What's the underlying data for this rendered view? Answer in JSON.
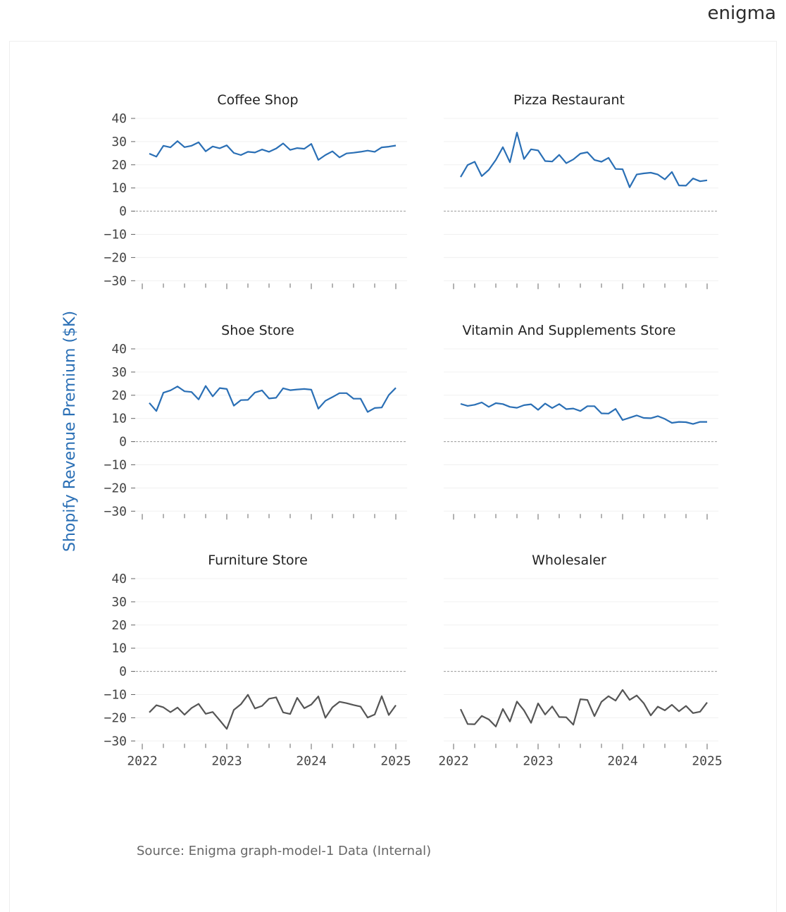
{
  "brand": {
    "logo_text": "enigma"
  },
  "source": "Source: Enigma graph-model-1 Data (Internal)",
  "chart_data": {
    "type": "line",
    "ylabel": "Shopify Revenue Premium ($K)",
    "ylim": [
      -30,
      40
    ],
    "yticks": [
      40,
      30,
      20,
      10,
      0,
      -10,
      -20,
      -30
    ],
    "ytick_labels": [
      "40",
      "30",
      "20",
      "10",
      "0",
      "−10",
      "−20",
      "−30"
    ],
    "xlim": [
      "2022-01",
      "2025-02"
    ],
    "xticks": [
      "2022",
      "2023",
      "2024",
      "2025"
    ],
    "zero_line": "dashed",
    "grid": "horizontal",
    "colors": {
      "positive": "#2a6fb5",
      "negative": "#555555"
    },
    "x": [
      "2022-02",
      "2022-03",
      "2022-04",
      "2022-05",
      "2022-06",
      "2022-07",
      "2022-08",
      "2022-09",
      "2022-10",
      "2022-11",
      "2022-12",
      "2023-01",
      "2023-02",
      "2023-03",
      "2023-04",
      "2023-05",
      "2023-06",
      "2023-07",
      "2023-08",
      "2023-09",
      "2023-10",
      "2023-11",
      "2023-12",
      "2024-01",
      "2024-02",
      "2024-03",
      "2024-04",
      "2024-05",
      "2024-06",
      "2024-07",
      "2024-08",
      "2024-09",
      "2024-10",
      "2024-11",
      "2024-12",
      "2025-01"
    ],
    "panels": [
      {
        "title": "Coffee Shop",
        "color": "#2a6fb5",
        "values": [
          24.8,
          23.5,
          28.2,
          27.5,
          30.2,
          27.6,
          28.2,
          29.7,
          25.8,
          27.9,
          27.1,
          28.4,
          25.1,
          24.2,
          25.6,
          25.3,
          26.6,
          25.6,
          27.0,
          29.2,
          26.4,
          27.2,
          26.9,
          29.0,
          22.1,
          24.2,
          25.8,
          23.2,
          24.9,
          25.2,
          25.6,
          26.1,
          25.6,
          27.5,
          27.8,
          28.3
        ]
      },
      {
        "title": "Pizza Restaurant",
        "color": "#2a6fb5",
        "values": [
          14.7,
          19.9,
          21.3,
          15.1,
          17.8,
          22.1,
          27.6,
          21.1,
          33.9,
          22.5,
          26.7,
          26.2,
          21.6,
          21.4,
          24.3,
          20.7,
          22.3,
          24.8,
          25.4,
          22.1,
          21.3,
          23.0,
          18.2,
          18.1,
          10.3,
          15.8,
          16.3,
          16.6,
          15.8,
          13.7,
          16.9,
          11.1,
          11.0,
          14.1,
          12.9,
          13.3
        ]
      },
      {
        "title": "Shoe Store",
        "color": "#2a6fb5",
        "values": [
          16.7,
          13.2,
          21.1,
          22.1,
          23.8,
          21.7,
          21.4,
          18.2,
          24.0,
          19.5,
          23.1,
          22.7,
          15.5,
          17.9,
          18.0,
          21.2,
          22.1,
          18.6,
          18.9,
          23.0,
          22.2,
          22.5,
          22.7,
          22.4,
          14.2,
          17.6,
          19.2,
          20.9,
          20.9,
          18.5,
          18.5,
          12.8,
          14.5,
          14.7,
          20.1,
          23.2
        ]
      },
      {
        "title": "Vitamin And Supplements Store",
        "color": "#2a6fb5",
        "values": [
          16.3,
          15.4,
          15.9,
          16.9,
          15.0,
          16.6,
          16.2,
          15.0,
          14.6,
          15.7,
          16.1,
          13.7,
          16.4,
          14.5,
          16.2,
          14.0,
          14.3,
          13.2,
          15.3,
          15.3,
          12.2,
          12.1,
          14.1,
          9.3,
          10.3,
          11.3,
          10.2,
          10.1,
          11.0,
          9.8,
          8.1,
          8.5,
          8.4,
          7.6,
          8.5,
          8.5
        ]
      },
      {
        "title": "Furniture Store",
        "color": "#555555",
        "values": [
          -17.7,
          -14.6,
          -15.5,
          -17.6,
          -15.6,
          -18.7,
          -15.8,
          -14.0,
          -18.3,
          -17.5,
          -21.1,
          -24.8,
          -16.6,
          -14.2,
          -10.1,
          -16.0,
          -14.9,
          -11.8,
          -11.2,
          -17.7,
          -18.4,
          -11.4,
          -15.9,
          -14.3,
          -10.8,
          -20.0,
          -15.5,
          -13.1,
          -13.7,
          -14.5,
          -15.2,
          -19.9,
          -18.6,
          -10.7,
          -18.8,
          -14.6
        ]
      },
      {
        "title": "Wholesaler",
        "color": "#555555",
        "values": [
          -16.3,
          -22.7,
          -22.8,
          -19.2,
          -20.7,
          -23.8,
          -16.2,
          -21.6,
          -13.0,
          -16.8,
          -22.2,
          -13.8,
          -18.6,
          -15.1,
          -19.7,
          -19.8,
          -23.0,
          -12.0,
          -12.3,
          -19.3,
          -13.1,
          -10.7,
          -12.6,
          -8.0,
          -12.3,
          -10.4,
          -13.7,
          -19.0,
          -15.2,
          -16.8,
          -14.4,
          -17.2,
          -14.9,
          -18.0,
          -17.4,
          -13.4
        ]
      }
    ]
  }
}
